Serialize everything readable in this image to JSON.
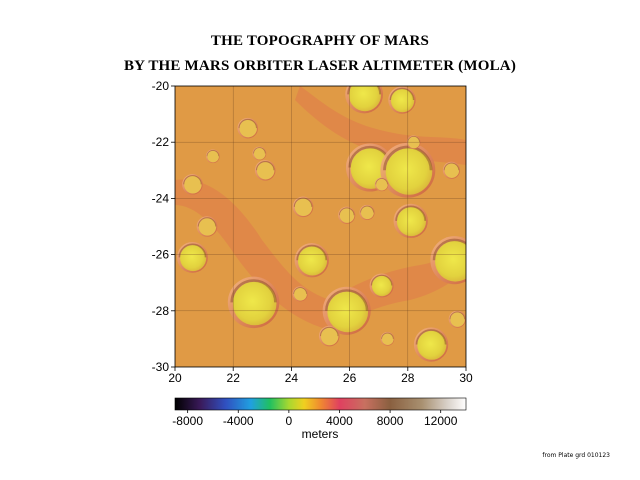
{
  "title": "THE TOPOGRAPHY OF MARS",
  "subtitle": "BY THE MARS ORBITER LASER ALTIMETER (MOLA)",
  "credit": "from Plate grd 010123",
  "map": {
    "x_ticks": [
      "20",
      "22",
      "24",
      "26",
      "28",
      "30"
    ],
    "y_ticks": [
      "-20",
      "-22",
      "-24",
      "-26",
      "-28",
      "-30"
    ],
    "x_range": [
      20,
      30
    ],
    "y_range": [
      -20,
      -30
    ],
    "grid": true,
    "base_color": "#e09a45",
    "highland_color": "#e07a4a",
    "crater_floor_color": "#e6dc45"
  },
  "colorbar": {
    "unit_label": "meters",
    "tick_labels": [
      "-8000",
      "-4000",
      "0",
      "4000",
      "8000",
      "12000"
    ],
    "tick_values": [
      -8000,
      -4000,
      0,
      4000,
      8000,
      12000
    ],
    "range": [
      -9000,
      14000
    ],
    "stops": [
      {
        "value": -9000,
        "color": "#000000"
      },
      {
        "value": -7000,
        "color": "#3a1a5a"
      },
      {
        "value": -5000,
        "color": "#3050c0"
      },
      {
        "value": -3000,
        "color": "#20a0e0"
      },
      {
        "value": -1500,
        "color": "#20c060"
      },
      {
        "value": 0,
        "color": "#a8d830"
      },
      {
        "value": 1200,
        "color": "#f0d020"
      },
      {
        "value": 2500,
        "color": "#f08a30"
      },
      {
        "value": 4000,
        "color": "#e04060"
      },
      {
        "value": 6000,
        "color": "#c87060"
      },
      {
        "value": 8000,
        "color": "#8a6040"
      },
      {
        "value": 10500,
        "color": "#a89070"
      },
      {
        "value": 12500,
        "color": "#d8d0c8"
      },
      {
        "value": 14000,
        "color": "#ffffff"
      }
    ]
  },
  "craters": [
    {
      "lon": 20.6,
      "lat": -26.1,
      "r": 0.45
    },
    {
      "lon": 22.7,
      "lat": -27.7,
      "r": 0.75
    },
    {
      "lon": 26.7,
      "lat": -22.9,
      "r": 0.7
    },
    {
      "lon": 28.0,
      "lat": -23.0,
      "r": 0.8
    },
    {
      "lon": 25.9,
      "lat": -28.0,
      "r": 0.7
    },
    {
      "lon": 24.7,
      "lat": -26.2,
      "r": 0.5
    },
    {
      "lon": 28.1,
      "lat": -24.8,
      "r": 0.5
    },
    {
      "lon": 28.8,
      "lat": -29.2,
      "r": 0.5
    },
    {
      "lon": 29.6,
      "lat": -26.2,
      "r": 0.7
    },
    {
      "lon": 27.1,
      "lat": -27.1,
      "r": 0.35
    },
    {
      "lon": 26.5,
      "lat": -20.3,
      "r": 0.55
    },
    {
      "lon": 27.8,
      "lat": -20.5,
      "r": 0.4
    },
    {
      "lon": 22.5,
      "lat": -21.5,
      "r": 0.3
    },
    {
      "lon": 23.1,
      "lat": -23.0,
      "r": 0.3
    },
    {
      "lon": 20.6,
      "lat": -23.5,
      "r": 0.3
    },
    {
      "lon": 24.4,
      "lat": -24.3,
      "r": 0.3
    },
    {
      "lon": 21.1,
      "lat": -25.0,
      "r": 0.3
    },
    {
      "lon": 25.3,
      "lat": -28.9,
      "r": 0.3
    },
    {
      "lon": 24.3,
      "lat": -27.4,
      "r": 0.22
    },
    {
      "lon": 25.9,
      "lat": -24.6,
      "r": 0.25
    },
    {
      "lon": 26.6,
      "lat": -24.5,
      "r": 0.22
    },
    {
      "lon": 27.3,
      "lat": -29.0,
      "r": 0.2
    },
    {
      "lon": 22.9,
      "lat": -22.4,
      "r": 0.2
    },
    {
      "lon": 28.2,
      "lat": -22.0,
      "r": 0.2
    },
    {
      "lon": 29.5,
      "lat": -23.0,
      "r": 0.25
    },
    {
      "lon": 27.1,
      "lat": -23.5,
      "r": 0.2
    },
    {
      "lon": 21.3,
      "lat": -22.5,
      "r": 0.2
    },
    {
      "lon": 29.7,
      "lat": -28.3,
      "r": 0.25
    }
  ]
}
